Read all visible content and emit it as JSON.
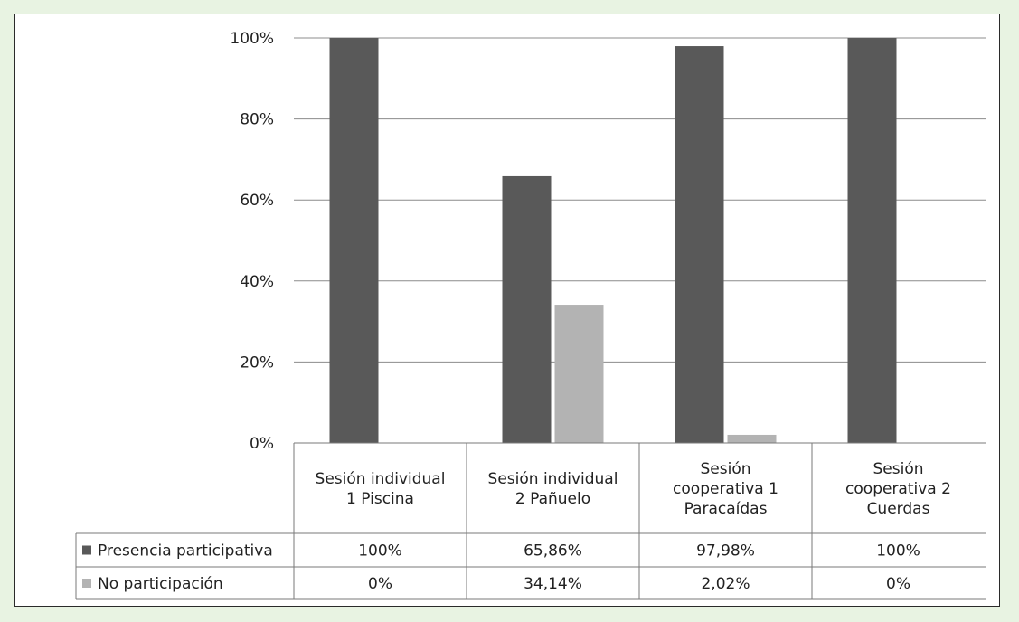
{
  "chart_data": {
    "type": "bar",
    "categories": [
      [
        "Sesión individual",
        "1 Piscina"
      ],
      [
        "Sesión individual",
        "2 Pañuelo"
      ],
      [
        "Sesión",
        "cooperativa 1",
        "Paracaídas"
      ],
      [
        "Sesión",
        "cooperativa 2",
        "Cuerdas"
      ]
    ],
    "series": [
      {
        "name": "Presencia participativa",
        "values": [
          100,
          65.86,
          97.98,
          100
        ],
        "labels": [
          "100%",
          "65,86%",
          "97,98%",
          "100%"
        ],
        "color": "#595959"
      },
      {
        "name": "No participación",
        "values": [
          0,
          34.14,
          2.02,
          0
        ],
        "labels": [
          "0%",
          "34,14%",
          "2,02%",
          "0%"
        ],
        "color": "#b3b3b3"
      }
    ],
    "yticks": [
      "0%",
      "20%",
      "40%",
      "60%",
      "80%",
      "100%"
    ],
    "ylim": [
      0,
      100
    ],
    "grid": true,
    "legend": "data-table"
  }
}
